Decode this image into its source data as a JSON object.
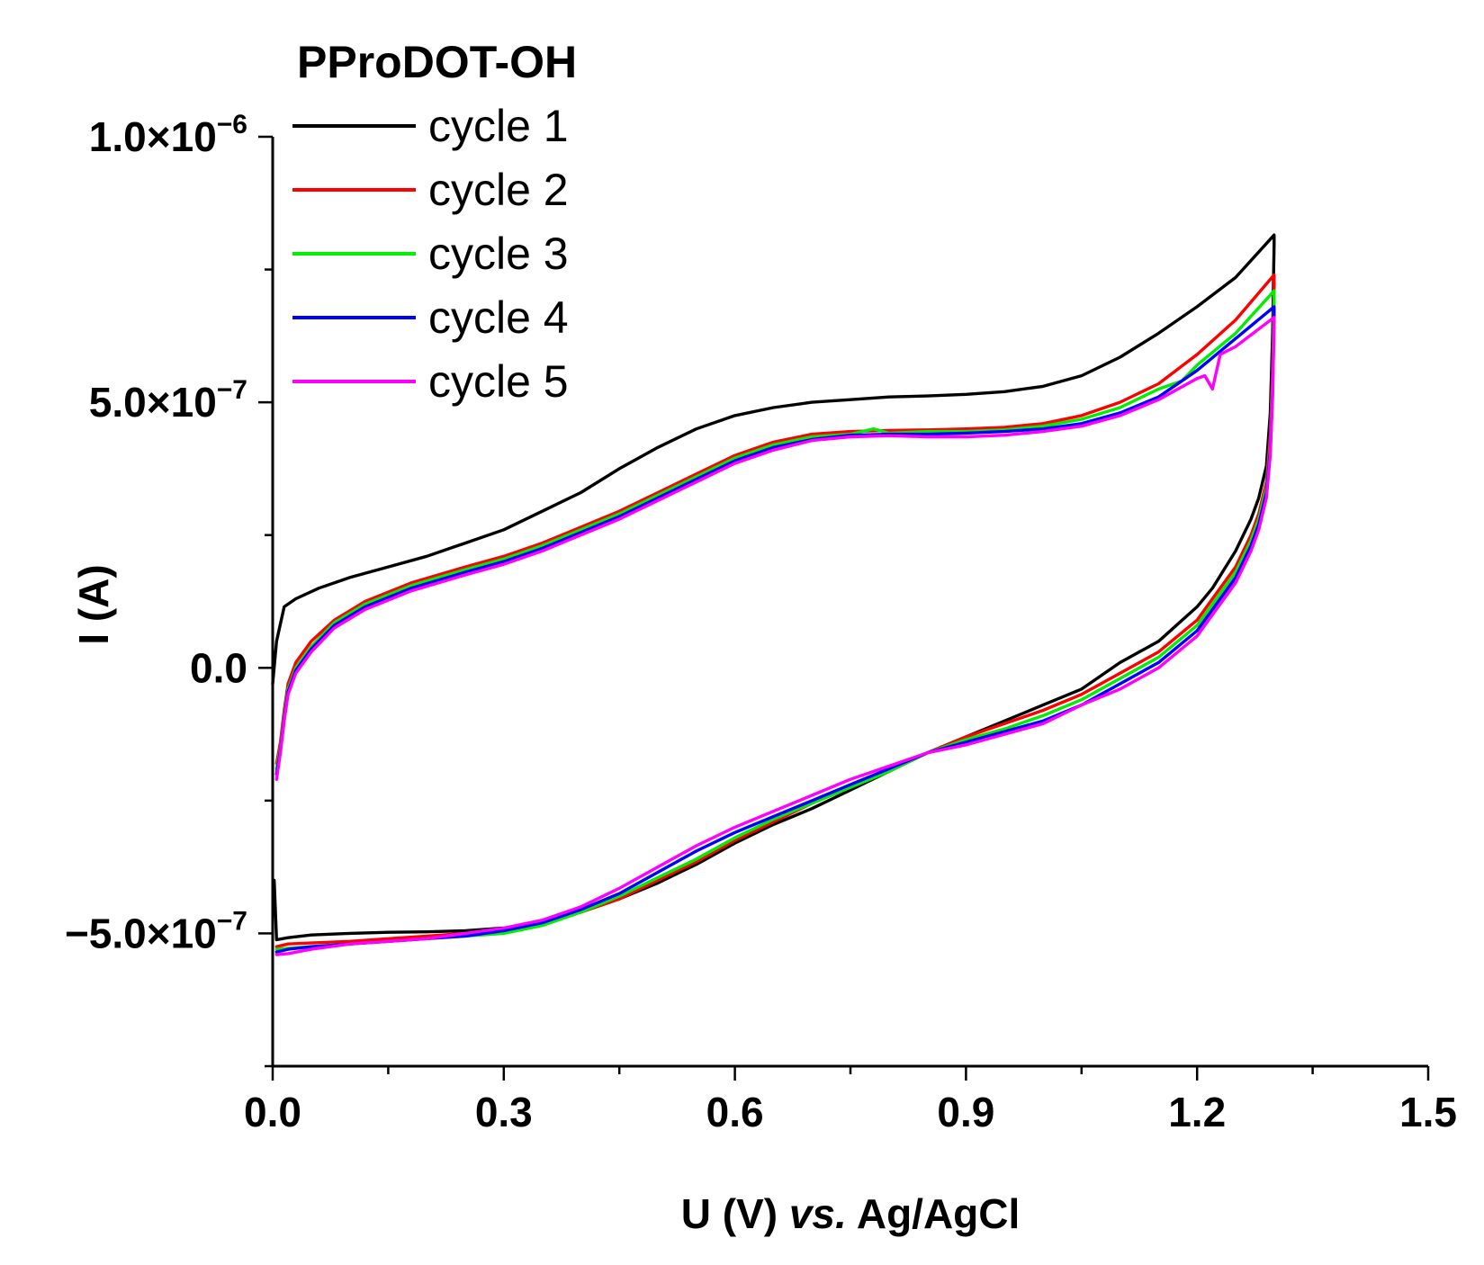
{
  "chart_data": {
    "type": "line",
    "title": "PProDOT-OH",
    "xlabel": "U (V) vs. Ag/AgCl",
    "xlabel_parts": [
      "U (V) ",
      "vs.",
      " Ag/AgCl"
    ],
    "ylabel": "I (A)",
    "xlim": [
      0.0,
      1.5
    ],
    "ylim": [
      -7.5e-07,
      1e-06
    ],
    "x_ticks": [
      0.0,
      0.3,
      0.6,
      0.9,
      1.2,
      1.5
    ],
    "x_tick_labels": [
      "0.0",
      "0.3",
      "0.6",
      "0.9",
      "1.2",
      "1.5"
    ],
    "y_ticks": [
      -5e-07,
      0.0,
      5e-07,
      1e-06
    ],
    "y_tick_labels": [
      {
        "mantissa": "−5.0×10",
        "exp": "−7"
      },
      {
        "mantissa": "0.0",
        "exp": ""
      },
      {
        "mantissa": "5.0×10",
        "exp": "−7"
      },
      {
        "mantissa": "1.0×10",
        "exp": "−6"
      }
    ],
    "legend_position": "top-left",
    "series": [
      {
        "name": "cycle 1",
        "color": "#000000",
        "x": [
          0.0,
          0.005,
          0.015,
          0.03,
          0.06,
          0.1,
          0.15,
          0.2,
          0.25,
          0.3,
          0.35,
          0.4,
          0.45,
          0.5,
          0.55,
          0.6,
          0.65,
          0.7,
          0.75,
          0.8,
          0.85,
          0.9,
          0.95,
          1.0,
          1.05,
          1.1,
          1.15,
          1.2,
          1.25,
          1.3,
          1.3,
          1.298,
          1.295,
          1.29,
          1.28,
          1.27,
          1.25,
          1.22,
          1.2,
          1.15,
          1.1,
          1.05,
          1.0,
          0.95,
          0.9,
          0.85,
          0.8,
          0.75,
          0.7,
          0.65,
          0.6,
          0.55,
          0.5,
          0.45,
          0.4,
          0.35,
          0.3,
          0.25,
          0.2,
          0.15,
          0.1,
          0.05,
          0.02,
          0.005,
          0.002
        ],
        "y": [
          -3e-08,
          5e-08,
          1.15e-07,
          1.3e-07,
          1.5e-07,
          1.7e-07,
          1.9e-07,
          2.1e-07,
          2.35e-07,
          2.6e-07,
          2.95e-07,
          3.3e-07,
          3.75e-07,
          4.15e-07,
          4.5e-07,
          4.75e-07,
          4.9e-07,
          5e-07,
          5.05e-07,
          5.1e-07,
          5.12e-07,
          5.15e-07,
          5.2e-07,
          5.3e-07,
          5.5e-07,
          5.85e-07,
          6.3e-07,
          6.8e-07,
          7.35e-07,
          8.15e-07,
          8e-07,
          6.3e-07,
          4.8e-07,
          3.8e-07,
          3.2e-07,
          2.8e-07,
          2.2e-07,
          1.5e-07,
          1.15e-07,
          5e-08,
          1e-08,
          -4e-08,
          -7e-08,
          -1e-07,
          -1.3e-07,
          -1.6e-07,
          -1.95e-07,
          -2.3e-07,
          -2.65e-07,
          -2.95e-07,
          -3.3e-07,
          -3.7e-07,
          -4.05e-07,
          -4.35e-07,
          -4.6e-07,
          -4.8e-07,
          -4.9e-07,
          -4.95e-07,
          -4.97e-07,
          -4.98e-07,
          -5e-07,
          -5.03e-07,
          -5.08e-07,
          -5.12e-07,
          -4e-07
        ]
      },
      {
        "name": "cycle 2",
        "color": "#ff0000",
        "x": [
          0.005,
          0.01,
          0.015,
          0.02,
          0.03,
          0.05,
          0.08,
          0.12,
          0.18,
          0.25,
          0.3,
          0.35,
          0.4,
          0.45,
          0.5,
          0.55,
          0.6,
          0.65,
          0.7,
          0.75,
          0.8,
          0.85,
          0.9,
          0.95,
          1.0,
          1.05,
          1.1,
          1.15,
          1.2,
          1.25,
          1.3,
          1.3,
          1.298,
          1.295,
          1.29,
          1.28,
          1.27,
          1.25,
          1.22,
          1.2,
          1.15,
          1.1,
          1.05,
          1.0,
          0.95,
          0.9,
          0.85,
          0.8,
          0.75,
          0.7,
          0.65,
          0.6,
          0.55,
          0.5,
          0.45,
          0.4,
          0.35,
          0.3,
          0.25,
          0.2,
          0.15,
          0.1,
          0.05,
          0.02,
          0.005
        ],
        "y": [
          -1.8e-07,
          -1.4e-07,
          -8e-08,
          -3e-08,
          1e-08,
          5e-08,
          9e-08,
          1.25e-07,
          1.6e-07,
          1.9e-07,
          2.1e-07,
          2.35e-07,
          2.65e-07,
          2.95e-07,
          3.3e-07,
          3.65e-07,
          4e-07,
          4.25e-07,
          4.4e-07,
          4.45e-07,
          4.47e-07,
          4.48e-07,
          4.5e-07,
          4.53e-07,
          4.6e-07,
          4.75e-07,
          5e-07,
          5.35e-07,
          5.9e-07,
          6.55e-07,
          7.4e-07,
          7.2e-07,
          5.6e-07,
          4.4e-07,
          3.5e-07,
          2.9e-07,
          2.5e-07,
          1.9e-07,
          1.3e-07,
          9e-08,
          3e-08,
          -1e-08,
          -5e-08,
          -8e-08,
          -1.05e-07,
          -1.3e-07,
          -1.6e-07,
          -1.95e-07,
          -2.25e-07,
          -2.55e-07,
          -2.9e-07,
          -3.25e-07,
          -3.65e-07,
          -4e-07,
          -4.35e-07,
          -4.6e-07,
          -4.8e-07,
          -4.95e-07,
          -5e-07,
          -5.05e-07,
          -5.1e-07,
          -5.15e-07,
          -5.18e-07,
          -5.2e-07,
          -5.25e-07
        ]
      },
      {
        "name": "cycle 3",
        "color": "#00ee00",
        "x": [
          0.005,
          0.01,
          0.015,
          0.02,
          0.03,
          0.05,
          0.08,
          0.12,
          0.18,
          0.25,
          0.3,
          0.35,
          0.4,
          0.45,
          0.5,
          0.55,
          0.6,
          0.65,
          0.7,
          0.75,
          0.78,
          0.8,
          0.85,
          0.9,
          0.95,
          1.0,
          1.05,
          1.1,
          1.15,
          1.18,
          1.2,
          1.25,
          1.3,
          1.3,
          1.298,
          1.295,
          1.29,
          1.28,
          1.27,
          1.25,
          1.22,
          1.2,
          1.15,
          1.1,
          1.05,
          1.0,
          0.95,
          0.9,
          0.85,
          0.8,
          0.75,
          0.7,
          0.65,
          0.6,
          0.55,
          0.5,
          0.45,
          0.4,
          0.35,
          0.3,
          0.25,
          0.2,
          0.15,
          0.1,
          0.05,
          0.02,
          0.005
        ],
        "y": [
          -1.9e-07,
          -1.5e-07,
          -9e-08,
          -4e-08,
          0.0,
          4e-08,
          8.5e-08,
          1.2e-07,
          1.55e-07,
          1.85e-07,
          2.05e-07,
          2.3e-07,
          2.6e-07,
          2.9e-07,
          3.25e-07,
          3.6e-07,
          3.95e-07,
          4.2e-07,
          4.35e-07,
          4.4e-07,
          4.5e-07,
          4.42e-07,
          4.45e-07,
          4.45e-07,
          4.48e-07,
          4.55e-07,
          4.68e-07,
          4.9e-07,
          5.25e-07,
          5.4e-07,
          5.7e-07,
          6.3e-07,
          7.1e-07,
          6.9e-07,
          5.4e-07,
          4.2e-07,
          3.4e-07,
          2.8e-07,
          2.4e-07,
          1.8e-07,
          1.2e-07,
          8e-08,
          2e-08,
          -2e-08,
          -6e-08,
          -9e-08,
          -1.15e-07,
          -1.35e-07,
          -1.6e-07,
          -1.95e-07,
          -2.25e-07,
          -2.55e-07,
          -2.85e-07,
          -3.2e-07,
          -3.6e-07,
          -3.95e-07,
          -4.3e-07,
          -4.6e-07,
          -4.85e-07,
          -5e-07,
          -5.05e-07,
          -5.1e-07,
          -5.15e-07,
          -5.2e-07,
          -5.25e-07,
          -5.28e-07,
          -5.3e-07
        ]
      },
      {
        "name": "cycle 4",
        "color": "#0000ff",
        "x": [
          0.005,
          0.01,
          0.015,
          0.02,
          0.03,
          0.05,
          0.08,
          0.12,
          0.18,
          0.25,
          0.3,
          0.35,
          0.4,
          0.45,
          0.5,
          0.55,
          0.6,
          0.65,
          0.7,
          0.75,
          0.8,
          0.85,
          0.9,
          0.95,
          1.0,
          1.05,
          1.1,
          1.15,
          1.2,
          1.25,
          1.3,
          1.3,
          1.298,
          1.295,
          1.29,
          1.28,
          1.27,
          1.25,
          1.22,
          1.2,
          1.15,
          1.1,
          1.05,
          1.0,
          0.95,
          0.9,
          0.85,
          0.8,
          0.75,
          0.7,
          0.65,
          0.6,
          0.55,
          0.5,
          0.45,
          0.4,
          0.35,
          0.3,
          0.25,
          0.2,
          0.15,
          0.1,
          0.05,
          0.02,
          0.005
        ],
        "y": [
          -2e-07,
          -1.55e-07,
          -9.5e-08,
          -4.5e-08,
          -5e-09,
          3.5e-08,
          8e-08,
          1.15e-07,
          1.5e-07,
          1.8e-07,
          2e-07,
          2.25e-07,
          2.55e-07,
          2.85e-07,
          3.2e-07,
          3.55e-07,
          3.9e-07,
          4.15e-07,
          4.3e-07,
          4.38e-07,
          4.4e-07,
          4.4e-07,
          4.42e-07,
          4.45e-07,
          4.5e-07,
          4.6e-07,
          4.8e-07,
          5.1e-07,
          5.6e-07,
          6.2e-07,
          6.8e-07,
          6.6e-07,
          5.2e-07,
          4.1e-07,
          3.3e-07,
          2.7e-07,
          2.3e-07,
          1.7e-07,
          1.1e-07,
          7e-08,
          1e-08,
          -3e-08,
          -7e-08,
          -1e-07,
          -1.2e-07,
          -1.4e-07,
          -1.6e-07,
          -1.9e-07,
          -2.2e-07,
          -2.5e-07,
          -2.8e-07,
          -3.1e-07,
          -3.45e-07,
          -3.85e-07,
          -4.25e-07,
          -4.55e-07,
          -4.8e-07,
          -4.95e-07,
          -5.05e-07,
          -5.1e-07,
          -5.15e-07,
          -5.2e-07,
          -5.25e-07,
          -5.3e-07,
          -5.35e-07
        ]
      },
      {
        "name": "cycle 5",
        "color": "#ff00ff",
        "x": [
          0.005,
          0.01,
          0.015,
          0.02,
          0.03,
          0.05,
          0.08,
          0.12,
          0.18,
          0.25,
          0.3,
          0.35,
          0.4,
          0.45,
          0.5,
          0.55,
          0.6,
          0.65,
          0.7,
          0.75,
          0.8,
          0.85,
          0.9,
          0.95,
          1.0,
          1.05,
          1.1,
          1.15,
          1.2,
          1.21,
          1.22,
          1.23,
          1.25,
          1.3,
          1.3,
          1.298,
          1.295,
          1.29,
          1.28,
          1.27,
          1.25,
          1.22,
          1.2,
          1.15,
          1.1,
          1.05,
          1.0,
          0.95,
          0.9,
          0.85,
          0.8,
          0.75,
          0.7,
          0.65,
          0.6,
          0.55,
          0.5,
          0.45,
          0.4,
          0.35,
          0.3,
          0.25,
          0.2,
          0.15,
          0.1,
          0.05,
          0.02,
          0.005
        ],
        "y": [
          -2.1e-07,
          -1.6e-07,
          -1e-07,
          -5e-08,
          -1e-08,
          3e-08,
          7.5e-08,
          1.1e-07,
          1.45e-07,
          1.75e-07,
          1.95e-07,
          2.2e-07,
          2.5e-07,
          2.8e-07,
          3.15e-07,
          3.5e-07,
          3.85e-07,
          4.1e-07,
          4.28e-07,
          4.35e-07,
          4.37e-07,
          4.35e-07,
          4.35e-07,
          4.38e-07,
          4.45e-07,
          4.55e-07,
          4.75e-07,
          5.05e-07,
          5.45e-07,
          5.5e-07,
          5.25e-07,
          5.9e-07,
          6.05e-07,
          6.6e-07,
          6.5e-07,
          5.1e-07,
          4e-07,
          3.2e-07,
          2.6e-07,
          2.2e-07,
          1.6e-07,
          1e-07,
          6e-08,
          0.0,
          -4e-08,
          -7e-08,
          -1.05e-07,
          -1.25e-07,
          -1.45e-07,
          -1.6e-07,
          -1.85e-07,
          -2.1e-07,
          -2.4e-07,
          -2.7e-07,
          -3e-07,
          -3.35e-07,
          -3.75e-07,
          -4.15e-07,
          -4.5e-07,
          -4.75e-07,
          -4.9e-07,
          -5e-07,
          -5.1e-07,
          -5.15e-07,
          -5.2e-07,
          -5.3e-07,
          -5.38e-07,
          -5.4e-07
        ]
      }
    ]
  }
}
